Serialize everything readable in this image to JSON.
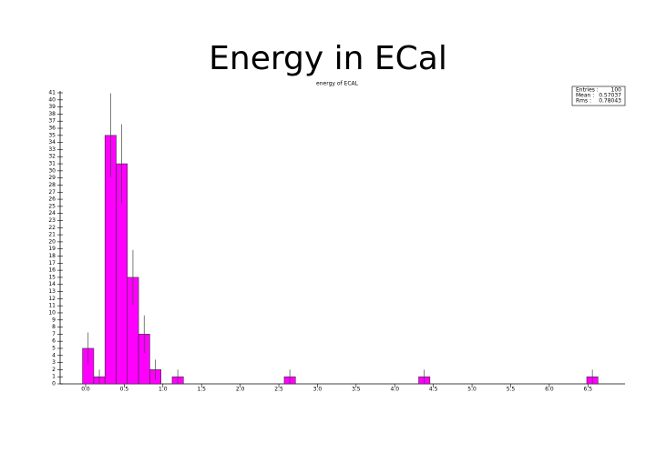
{
  "chart_data": {
    "type": "histogram",
    "title": "Energy in ECal",
    "subtitle": "energy of ECAL",
    "color": "#ff00ff",
    "bins": [
      -0.04,
      0.105,
      0.25,
      0.395,
      0.54,
      0.685,
      0.83,
      0.975,
      1.12,
      1.265,
      1.41,
      1.555,
      1.7,
      1.845,
      1.99,
      2.135,
      2.28,
      2.425,
      2.57,
      2.715,
      2.86,
      3.005,
      3.15,
      3.295,
      3.44,
      3.585,
      3.73,
      3.875,
      4.02,
      4.165,
      4.31,
      4.455,
      4.6,
      4.745,
      4.89,
      5.035,
      5.18,
      5.325,
      5.47,
      5.615,
      5.76,
      5.905,
      6.05,
      6.195,
      6.34,
      6.485,
      6.63
    ],
    "values": [
      5,
      1,
      35,
      31,
      15,
      7,
      2,
      0,
      1,
      0,
      0,
      0,
      0,
      0,
      0,
      0,
      0,
      0,
      1,
      0,
      0,
      0,
      0,
      0,
      0,
      0,
      0,
      0,
      0,
      0,
      1,
      0,
      0,
      0,
      0,
      0,
      0,
      0,
      0,
      0,
      0,
      0,
      0,
      0,
      0,
      1
    ],
    "errors": [
      2.24,
      1,
      5.92,
      5.57,
      3.87,
      2.65,
      1.41,
      0,
      1,
      0,
      0,
      0,
      0,
      0,
      0,
      0,
      0,
      0,
      1,
      0,
      0,
      0,
      0,
      0,
      0,
      0,
      0,
      0,
      0,
      0,
      1,
      0,
      0,
      0,
      0,
      0,
      0,
      0,
      0,
      0,
      0,
      0,
      0,
      0,
      0,
      1
    ],
    "xlim": [
      -0.33,
      6.98
    ],
    "xticks": [
      {
        "value": 0,
        "label": "0.0"
      },
      0.5,
      {
        "value": 1,
        "label": "1.0"
      },
      1.5,
      {
        "value": 2,
        "label": "2.0"
      },
      2.5,
      {
        "value": 3,
        "label": "3.0"
      },
      3.5,
      {
        "value": 4,
        "label": "4.0"
      },
      4.5,
      {
        "value": 5,
        "label": "5.0"
      },
      5.5,
      {
        "value": 6,
        "label": "6.0"
      },
      6.5
    ],
    "ylim": [
      0,
      41
    ],
    "yticks": [
      0,
      1,
      2,
      3,
      4,
      5,
      6,
      7,
      8,
      9,
      10,
      11,
      12,
      13,
      14,
      15,
      16,
      17,
      18,
      19,
      20,
      21,
      22,
      23,
      24,
      25,
      26,
      27,
      28,
      29,
      30,
      31,
      32,
      33,
      34,
      35,
      36,
      37,
      38,
      39,
      40,
      41
    ],
    "stats": [
      {
        "label": "Entries :",
        "value": 100
      },
      {
        "label": "Mean :",
        "value": 0.57037
      },
      {
        "label": "Rms :",
        "value": 0.78043
      }
    ]
  }
}
